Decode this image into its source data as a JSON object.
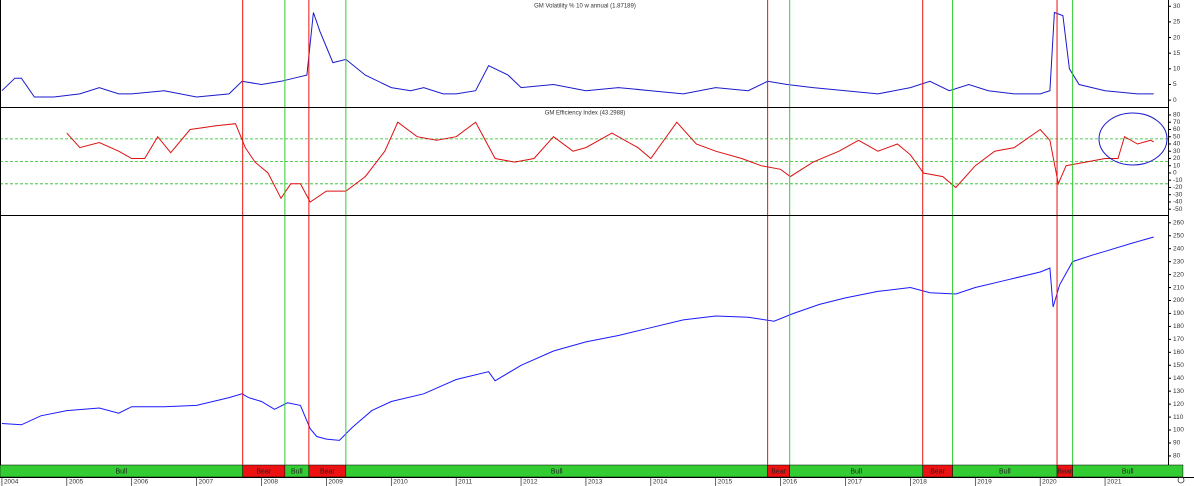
{
  "chart_data": [
    {
      "type": "line",
      "title": "GM Volatility % 10 w annual (1.87189)",
      "color": "#1a1acc",
      "xlim": [
        2003.97,
        2021.97
      ],
      "ylim": [
        -2.2,
        32
      ],
      "yticks": [
        0,
        5,
        10,
        15,
        20,
        25,
        30
      ],
      "x": [
        2004.0,
        2004.2,
        2004.3,
        2004.5,
        2004.8,
        2005.2,
        2005.5,
        2005.8,
        2006.0,
        2006.5,
        2007.0,
        2007.5,
        2007.7,
        2008.0,
        2008.3,
        2008.5,
        2008.7,
        2008.8,
        2008.9,
        2009.1,
        2009.3,
        2009.6,
        2010.0,
        2010.3,
        2010.5,
        2010.8,
        2011.0,
        2011.3,
        2011.5,
        2011.8,
        2012.0,
        2012.5,
        2013.0,
        2013.5,
        2014.0,
        2014.5,
        2015.0,
        2015.5,
        2015.8,
        2016.1,
        2016.5,
        2017.0,
        2017.5,
        2018.0,
        2018.3,
        2018.6,
        2018.9,
        2019.2,
        2019.6,
        2020.0,
        2020.15,
        2020.22,
        2020.35,
        2020.45,
        2020.6,
        2021.0,
        2021.5,
        2021.75
      ],
      "values": [
        3,
        7,
        7,
        1,
        1,
        2,
        4,
        2,
        2,
        3,
        1,
        2,
        6,
        5,
        6,
        7,
        8,
        28,
        22,
        12,
        13,
        8,
        4,
        3,
        4,
        2,
        2,
        3,
        11,
        8,
        4,
        5,
        3,
        4,
        3,
        2,
        4,
        3,
        6,
        5,
        4,
        3,
        2,
        4,
        6,
        3,
        5,
        3,
        2,
        2,
        3,
        28,
        27,
        10,
        5,
        3,
        2,
        2
      ]
    },
    {
      "type": "line",
      "title": "GM Efficiency Index (43.2988)",
      "color": "#dd1111",
      "xlim": [
        2003.97,
        2021.97
      ],
      "ylim": [
        -58,
        91
      ],
      "yticks": [
        -50,
        -40,
        -30,
        -20,
        -10,
        0,
        10,
        20,
        30,
        40,
        50,
        60,
        70,
        80
      ],
      "hlines": [
        47,
        16,
        -15
      ],
      "hline_color": "#22bb22",
      "x": [
        2005.0,
        2005.2,
        2005.5,
        2005.8,
        2006.0,
        2006.2,
        2006.4,
        2006.6,
        2006.9,
        2007.3,
        2007.6,
        2007.75,
        2007.9,
        2008.1,
        2008.3,
        2008.45,
        2008.6,
        2008.75,
        2009.0,
        2009.3,
        2009.6,
        2009.9,
        2010.1,
        2010.4,
        2010.7,
        2011.0,
        2011.3,
        2011.6,
        2011.9,
        2012.2,
        2012.5,
        2012.8,
        2013.0,
        2013.4,
        2013.8,
        2014.0,
        2014.4,
        2014.7,
        2015.0,
        2015.4,
        2015.7,
        2016.0,
        2016.15,
        2016.5,
        2016.9,
        2017.2,
        2017.5,
        2017.8,
        2018.0,
        2018.2,
        2018.5,
        2018.7,
        2019.0,
        2019.3,
        2019.6,
        2020.0,
        2020.15,
        2020.28,
        2020.4,
        2020.7,
        2021.0,
        2021.2,
        2021.3,
        2021.5,
        2021.7,
        2021.75
      ],
      "values": [
        55,
        35,
        42,
        30,
        20,
        20,
        50,
        28,
        60,
        65,
        68,
        35,
        15,
        0,
        -35,
        -15,
        -15,
        -40,
        -25,
        -25,
        -5,
        30,
        70,
        50,
        45,
        50,
        70,
        20,
        15,
        20,
        50,
        30,
        35,
        55,
        35,
        20,
        70,
        40,
        30,
        20,
        10,
        5,
        -5,
        15,
        30,
        45,
        30,
        40,
        25,
        0,
        -5,
        -20,
        10,
        30,
        35,
        60,
        45,
        -15,
        10,
        15,
        20,
        20,
        50,
        40,
        45,
        43
      ]
    },
    {
      "type": "line",
      "color": "#1a1aff",
      "xlim": [
        2003.97,
        2021.97
      ],
      "ylim": [
        73,
        266
      ],
      "yticks": [
        80,
        90,
        100,
        110,
        120,
        130,
        140,
        150,
        160,
        170,
        180,
        190,
        200,
        210,
        220,
        230,
        240,
        250,
        260
      ],
      "xticks": [
        2004,
        2005,
        2006,
        2007,
        2008,
        2009,
        2010,
        2011,
        2012,
        2013,
        2014,
        2015,
        2016,
        2017,
        2018,
        2019,
        2020,
        2021
      ],
      "x": [
        2004.0,
        2004.3,
        2004.6,
        2005.0,
        2005.5,
        2005.8,
        2006.0,
        2006.5,
        2007.0,
        2007.5,
        2007.7,
        2007.8,
        2008.0,
        2008.2,
        2008.4,
        2008.6,
        2008.75,
        2008.85,
        2009.0,
        2009.2,
        2009.4,
        2009.7,
        2010.0,
        2010.5,
        2011.0,
        2011.5,
        2011.6,
        2012.0,
        2012.5,
        2013.0,
        2013.5,
        2014.0,
        2014.5,
        2015.0,
        2015.5,
        2015.9,
        2016.2,
        2016.6,
        2017.0,
        2017.5,
        2018.0,
        2018.3,
        2018.7,
        2019.0,
        2019.5,
        2020.0,
        2020.15,
        2020.2,
        2020.3,
        2020.5,
        2020.8,
        2021.0,
        2021.4,
        2021.75
      ],
      "values": [
        105,
        104,
        111,
        115,
        117,
        113,
        118,
        118,
        119,
        125,
        128,
        125,
        122,
        116,
        121,
        119,
        101,
        95,
        93,
        92,
        102,
        115,
        122,
        128,
        139,
        145,
        138,
        150,
        161,
        168,
        173,
        179,
        185,
        188,
        187,
        184,
        190,
        197,
        202,
        207,
        210,
        206,
        205,
        210,
        216,
        222,
        225,
        195,
        212,
        230,
        235,
        238,
        244,
        249
      ],
      "regime_colors": {
        "Bull": "#33cc33",
        "Bear": "#ee1111"
      },
      "regimes": [
        {
          "label": "Bull",
          "start": 2003.97,
          "end": 2007.71
        },
        {
          "label": "Bear",
          "start": 2007.71,
          "end": 2008.36
        },
        {
          "label": "Bull",
          "start": 2008.36,
          "end": 2008.73
        },
        {
          "label": "Bear",
          "start": 2008.73,
          "end": 2009.3
        },
        {
          "label": "Bull",
          "start": 2009.3,
          "end": 2015.8
        },
        {
          "label": "Bear",
          "start": 2015.8,
          "end": 2016.14
        },
        {
          "label": "Bull",
          "start": 2016.14,
          "end": 2018.19
        },
        {
          "label": "Bear",
          "start": 2018.19,
          "end": 2018.65
        },
        {
          "label": "Bull",
          "start": 2018.65,
          "end": 2020.26
        },
        {
          "label": "Bear",
          "start": 2020.26,
          "end": 2020.5
        },
        {
          "label": "Bull",
          "start": 2020.5,
          "end": 2022.2
        }
      ]
    }
  ]
}
